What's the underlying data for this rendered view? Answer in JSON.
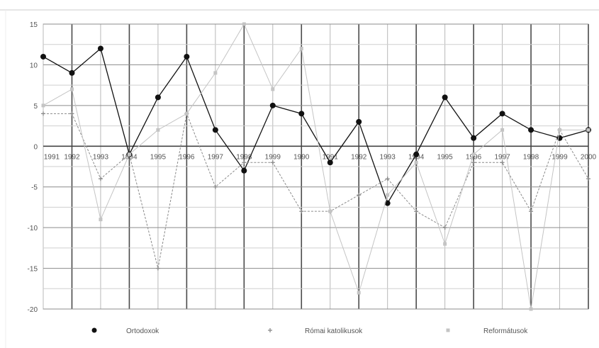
{
  "chart_data": {
    "type": "line",
    "categories": [
      "1991",
      "1992",
      "1993",
      "1994",
      "1995",
      "1996",
      "1997",
      "1998",
      "1999",
      "1990",
      "1991",
      "1992",
      "1993",
      "1994",
      "1995",
      "1996",
      "1997",
      "1998",
      "1999",
      "2000"
    ],
    "ylim": [
      -20,
      15
    ],
    "yticks": [
      "15",
      "10",
      "5",
      "0",
      "-5",
      "-10",
      "-15",
      "-20"
    ],
    "yticks_values": [
      15,
      10,
      5,
      0,
      -5,
      -10,
      -15,
      -20
    ],
    "grid": true,
    "legend_position": "bottom",
    "series": [
      {
        "name": "Ortodoxok",
        "color": "#111111",
        "values": [
          11,
          9,
          12,
          -1,
          6,
          11,
          2,
          -3,
          5,
          4,
          -2,
          3,
          -7,
          -1,
          6,
          1,
          4,
          2,
          1,
          2
        ]
      },
      {
        "name": "Római katolikusok",
        "color": "#8a8a8a",
        "values": [
          4,
          4,
          -4,
          -1,
          -15,
          4,
          -5,
          -2,
          -2,
          -8,
          -8,
          -6,
          -4,
          -8,
          -10,
          -2,
          -2,
          -8,
          2,
          -4
        ]
      },
      {
        "name": "Reformátusok",
        "color": "#c4c4c4",
        "values": [
          5,
          7,
          -9,
          -1,
          2,
          4,
          9,
          15,
          7,
          12,
          -8,
          -18,
          -6,
          -2,
          -12,
          -1,
          2,
          -20,
          2,
          2
        ]
      }
    ]
  }
}
